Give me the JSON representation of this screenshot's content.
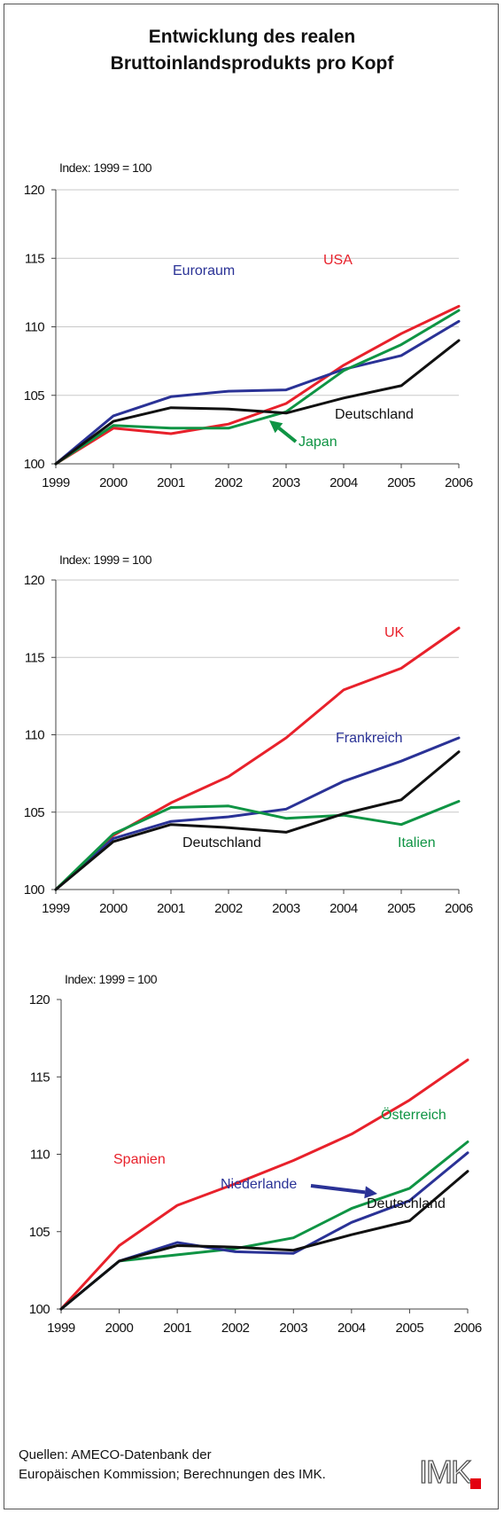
{
  "title": {
    "line1": "Entwicklung des realen",
    "line2": "Bruttoinlandsprodukts pro Kopf"
  },
  "source": {
    "line1": "Quellen: AMECO-Datenbank der",
    "line2": "Europäischen Kommission; Berechnungen des IMK."
  },
  "logo": {
    "text": "IMK",
    "accent_color": "#e3000f"
  },
  "colors": {
    "red": "#e8212b",
    "blue": "#2a3296",
    "green": "#0f9444",
    "black": "#111111",
    "grid": "#c8c8c8"
  },
  "chart_data": [
    {
      "type": "line",
      "ylabel": "Index: 1999 = 100",
      "x": [
        "1999",
        "2000",
        "2001",
        "2002",
        "2003",
        "2004",
        "2005",
        "2006"
      ],
      "ylim": [
        100,
        120
      ],
      "yticks": [
        100,
        105,
        110,
        115,
        120
      ],
      "grid": true,
      "series": [
        {
          "name": "USA",
          "color": "#e8212b",
          "values": [
            100,
            102.6,
            102.2,
            102.9,
            104.4,
            107.2,
            109.5,
            111.5
          ]
        },
        {
          "name": "Euroraum",
          "color": "#2a3296",
          "values": [
            100,
            103.5,
            104.9,
            105.3,
            105.4,
            106.9,
            107.9,
            110.4
          ]
        },
        {
          "name": "Japan",
          "color": "#0f9444",
          "values": [
            100,
            102.8,
            102.6,
            102.6,
            103.8,
            106.8,
            108.7,
            111.2
          ]
        },
        {
          "name": "Deutschland",
          "color": "#111111",
          "values": [
            100,
            103.1,
            104.1,
            104.0,
            103.7,
            104.8,
            105.7,
            109.0
          ]
        }
      ]
    },
    {
      "type": "line",
      "ylabel": "Index: 1999 = 100",
      "x": [
        "1999",
        "2000",
        "2001",
        "2002",
        "2003",
        "2004",
        "2005",
        "2006"
      ],
      "ylim": [
        100,
        120
      ],
      "yticks": [
        100,
        105,
        110,
        115,
        120
      ],
      "grid": true,
      "series": [
        {
          "name": "UK",
          "color": "#e8212b",
          "values": [
            100,
            103.5,
            105.6,
            107.3,
            109.8,
            112.9,
            114.3,
            116.9
          ]
        },
        {
          "name": "Frankreich",
          "color": "#2a3296",
          "values": [
            100,
            103.3,
            104.4,
            104.7,
            105.2,
            107.0,
            108.3,
            109.8
          ]
        },
        {
          "name": "Italien",
          "color": "#0f9444",
          "values": [
            100,
            103.6,
            105.3,
            105.4,
            104.6,
            104.8,
            104.2,
            105.7
          ]
        },
        {
          "name": "Deutschland",
          "color": "#111111",
          "values": [
            100,
            103.1,
            104.2,
            104.0,
            103.7,
            104.9,
            105.8,
            108.9
          ]
        }
      ]
    },
    {
      "type": "line",
      "ylabel": "Index: 1999 = 100",
      "x": [
        "1999",
        "2000",
        "2001",
        "2002",
        "2003",
        "2004",
        "2005",
        "2006"
      ],
      "ylim": [
        100,
        120
      ],
      "yticks": [
        100,
        105,
        110,
        115,
        120
      ],
      "grid": false,
      "series": [
        {
          "name": "Spanien",
          "color": "#e8212b",
          "values": [
            100,
            104.1,
            106.7,
            108.1,
            109.6,
            111.3,
            113.5,
            116.1
          ]
        },
        {
          "name": "Österreich",
          "color": "#0f9444",
          "values": [
            100,
            103.1,
            103.5,
            103.9,
            104.6,
            106.5,
            107.8,
            110.8
          ]
        },
        {
          "name": "Niederlande",
          "color": "#2a3296",
          "values": [
            100,
            103.1,
            104.3,
            103.7,
            103.6,
            105.6,
            107.0,
            110.1
          ]
        },
        {
          "name": "Deutschland",
          "color": "#111111",
          "values": [
            100,
            103.1,
            104.1,
            104.0,
            103.8,
            104.8,
            105.7,
            108.9
          ]
        }
      ]
    }
  ]
}
